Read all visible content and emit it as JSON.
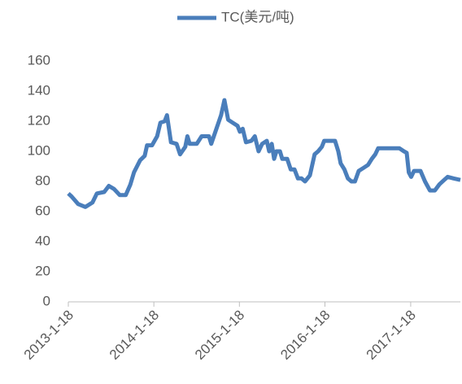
{
  "chart_data": {
    "type": "line",
    "series": [
      {
        "name": "TC(美元/吨)",
        "color": "#4a7ebb",
        "x": [
          "2013-1-18",
          "2013-2-1",
          "2013-3-1",
          "2013-4-1",
          "2013-5-1",
          "2013-5-20",
          "2013-6-20",
          "2013-7-10",
          "2013-8-1",
          "2013-8-25",
          "2013-9-20",
          "2013-10-10",
          "2013-10-25",
          "2013-11-20",
          "2013-12-10",
          "2013-12-20",
          "2014-1-10",
          "2014-2-1",
          "2014-2-15",
          "2014-3-5",
          "2014-3-15",
          "2014-4-1",
          "2014-4-25",
          "2014-5-10",
          "2014-6-1",
          "2014-6-10",
          "2014-6-20",
          "2014-7-20",
          "2014-8-10",
          "2014-9-10",
          "2014-9-20",
          "2014-10-1",
          "2014-11-1",
          "2014-11-15",
          "2014-12-1",
          "2014-12-20",
          "2015-1-10",
          "2015-1-20",
          "2015-2-1",
          "2015-2-15",
          "2015-3-10",
          "2015-3-25",
          "2015-4-10",
          "2015-4-25",
          "2015-5-15",
          "2015-5-25",
          "2015-6-5",
          "2015-6-15",
          "2015-6-25",
          "2015-7-10",
          "2015-7-20",
          "2015-8-10",
          "2015-8-25",
          "2015-9-10",
          "2015-9-25",
          "2015-10-10",
          "2015-10-25",
          "2015-11-15",
          "2015-12-5",
          "2015-12-20",
          "2016-1-5",
          "2016-1-15",
          "2016-2-10",
          "2016-3-1",
          "2016-3-15",
          "2016-3-25",
          "2016-4-10",
          "2016-4-25",
          "2016-5-10",
          "2016-5-25",
          "2016-6-10",
          "2016-7-1",
          "2016-7-20",
          "2016-8-5",
          "2016-8-20",
          "2016-9-1",
          "2016-10-1",
          "2016-12-1",
          "2016-12-20",
          "2017-1-1",
          "2017-1-10",
          "2017-1-20",
          "2017-2-1",
          "2017-3-1",
          "2017-3-20",
          "2017-4-10",
          "2017-5-1",
          "2017-5-20",
          "2017-6-10",
          "2017-6-25",
          "2017-7-20",
          "2017-8-18"
        ],
        "values": [
          72,
          70,
          65,
          63,
          66,
          72,
          73,
          77,
          75,
          71,
          71,
          78,
          86,
          94,
          97,
          104,
          104,
          110,
          119,
          120,
          124,
          106,
          105,
          98,
          103,
          110,
          105,
          105,
          110,
          110,
          105,
          110,
          124,
          134,
          121,
          119,
          117,
          113,
          115,
          106,
          107,
          110,
          100,
          105,
          107,
          100,
          105,
          95,
          100,
          100,
          95,
          95,
          88,
          88,
          82,
          82,
          80,
          84,
          98,
          100,
          103,
          107,
          107,
          107,
          100,
          92,
          88,
          82,
          80,
          80,
          87,
          89,
          91,
          95,
          98,
          102,
          102,
          102,
          100,
          99,
          86,
          83,
          87,
          87,
          80,
          74,
          74,
          78,
          81,
          83,
          82,
          81
        ]
      }
    ],
    "xlim": [
      "2013-1-18",
      "2017-8-18"
    ],
    "xticks": [
      "2013-1-18",
      "2014-1-18",
      "2015-1-18",
      "2016-1-18",
      "2017-1-18"
    ],
    "ylim": [
      0,
      160
    ],
    "yticks": [
      0,
      20,
      40,
      60,
      80,
      100,
      120,
      140,
      160
    ],
    "grid": false,
    "legend": "top"
  }
}
